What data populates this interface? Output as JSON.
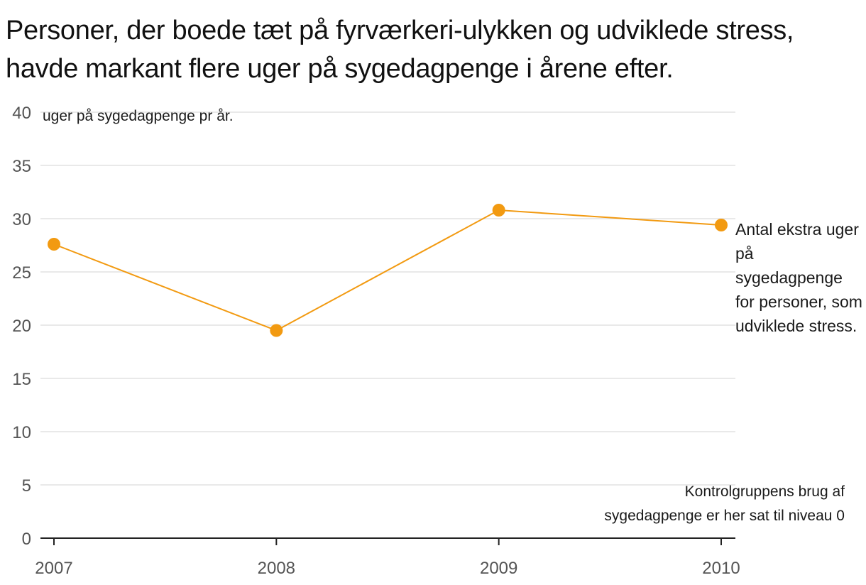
{
  "title": "Personer, der boede tæt på fyrværkeri-ulykken og udviklede stress, havde markant flere uger på sygedagpenge i årene efter.",
  "chart_data": {
    "type": "line",
    "ylabel": "uger på sygedagpenge pr år.",
    "x": [
      "2007",
      "2008",
      "2009",
      "2010"
    ],
    "ylim": [
      0,
      40
    ],
    "yticks": [
      0,
      5,
      10,
      15,
      20,
      25,
      30,
      35,
      40
    ],
    "grid": true,
    "series": [
      {
        "name": "Antal ekstra uger på sygedagpenge for personer, som udviklede stress.",
        "values": [
          27.6,
          19.5,
          30.8,
          29.4
        ],
        "color": "#f29a11"
      }
    ],
    "annotation": [
      "Kontrolgruppens brug af",
      "sygedagpenge er her sat til niveau 0"
    ]
  }
}
